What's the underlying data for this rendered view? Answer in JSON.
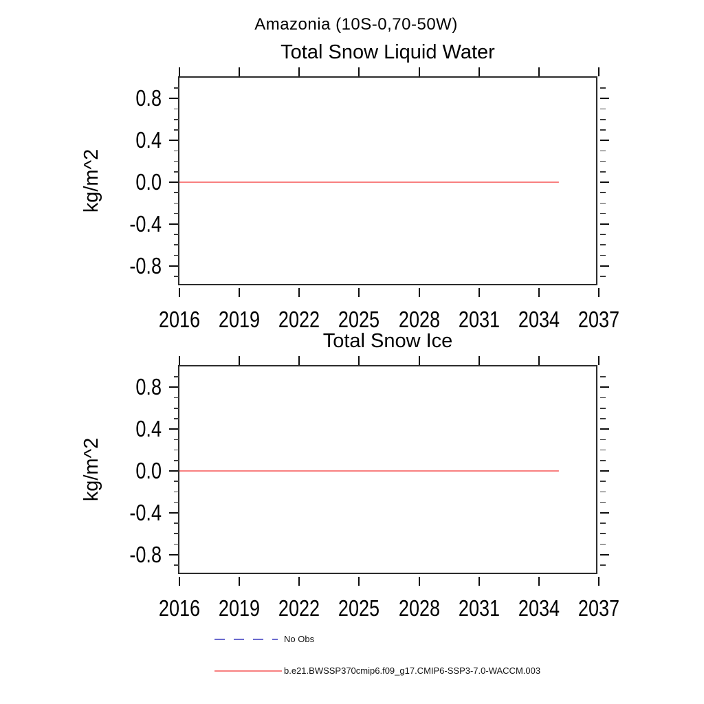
{
  "main_title": "Amazonia (10S-0,70-50W)",
  "legend": {
    "items": [
      {
        "label": "No Obs",
        "color": "#6a6ace",
        "style": "dashed"
      },
      {
        "label": "b.e21.BWSSP370cmip6.f09_g17.CMIP6-SSP3-7.0-WACCM.003",
        "color": "#f88080",
        "style": "solid"
      }
    ]
  },
  "chart_data": [
    {
      "type": "line",
      "title": "Total Snow Liquid Water",
      "xlabel": "",
      "ylabel": "kg/m^2",
      "xlim": [
        2016,
        2037
      ],
      "ylim": [
        -1.0,
        1.0
      ],
      "x_ticks": [
        2016,
        2019,
        2022,
        2025,
        2028,
        2031,
        2034,
        2037
      ],
      "y_ticks": [
        -0.8,
        -0.4,
        0.0,
        0.4,
        0.8
      ],
      "y_minor_step": 0.1,
      "grid": false,
      "legend_position": "below-figure",
      "series": [
        {
          "name": "b.e21.BWSSP370cmip6.f09_g17.CMIP6-SSP3-7.0-WACCM.003",
          "color": "#f88080",
          "x": [
            2016,
            2017,
            2018,
            2019,
            2020,
            2021,
            2022,
            2023,
            2024,
            2025,
            2026,
            2027,
            2028,
            2029,
            2030,
            2031,
            2032,
            2033,
            2034,
            2035
          ],
          "y": [
            0,
            0,
            0,
            0,
            0,
            0,
            0,
            0,
            0,
            0,
            0,
            0,
            0,
            0,
            0,
            0,
            0,
            0,
            0,
            0
          ]
        }
      ]
    },
    {
      "type": "line",
      "title": "Total Snow Ice",
      "xlabel": "",
      "ylabel": "kg/m^2",
      "xlim": [
        2016,
        2037
      ],
      "ylim": [
        -1.0,
        1.0
      ],
      "x_ticks": [
        2016,
        2019,
        2022,
        2025,
        2028,
        2031,
        2034,
        2037
      ],
      "y_ticks": [
        -0.8,
        -0.4,
        0.0,
        0.4,
        0.8
      ],
      "y_minor_step": 0.1,
      "grid": false,
      "legend_position": "below-figure",
      "series": [
        {
          "name": "b.e21.BWSSP370cmip6.f09_g17.CMIP6-SSP3-7.0-WACCM.003",
          "color": "#f88080",
          "x": [
            2016,
            2017,
            2018,
            2019,
            2020,
            2021,
            2022,
            2023,
            2024,
            2025,
            2026,
            2027,
            2028,
            2029,
            2030,
            2031,
            2032,
            2033,
            2034,
            2035
          ],
          "y": [
            0,
            0,
            0,
            0,
            0,
            0,
            0,
            0,
            0,
            0,
            0,
            0,
            0,
            0,
            0,
            0,
            0,
            0,
            0,
            0
          ]
        }
      ]
    }
  ]
}
